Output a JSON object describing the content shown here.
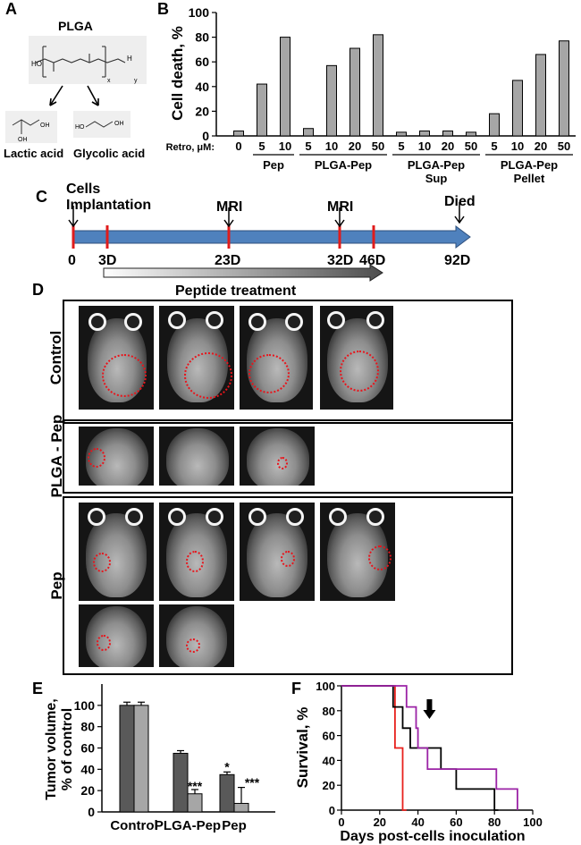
{
  "panel_labels": {
    "A": "A",
    "B": "B",
    "C": "C",
    "D": "D",
    "E": "E",
    "F": "F"
  },
  "panel_a": {
    "title": "PLGA",
    "product_1": "Lactic acid",
    "product_2": "Glycolic acid"
  },
  "panel_c": {
    "events": [
      "Cells\nImplantation",
      "MRI",
      "MRI",
      "Died"
    ],
    "days": [
      "0",
      "3D",
      "23D",
      "32D",
      "46D",
      "92D"
    ],
    "treatment_label": "Peptide treatment"
  },
  "panel_d": {
    "rows": [
      "Control",
      "PLGA - Pep",
      "Pep"
    ]
  },
  "chart_data": [
    {
      "type": "bar",
      "panel": "B",
      "ylabel": "Cell death, %",
      "ylim": [
        0,
        100
      ],
      "yticks": [
        0,
        20,
        40,
        60,
        80,
        100
      ],
      "x_prefix": "Retro, μM:",
      "categories": [
        "0",
        "5",
        "10",
        "5",
        "10",
        "20",
        "50",
        "5",
        "10",
        "20",
        "50",
        "5",
        "10",
        "20",
        "50"
      ],
      "values": [
        4,
        42,
        80,
        6,
        57,
        71,
        82,
        3,
        4,
        4,
        3,
        18,
        45,
        66,
        77
      ],
      "groups": [
        {
          "label": "Pep",
          "range": [
            1,
            2
          ]
        },
        {
          "label": "PLGA-Pep",
          "range": [
            3,
            6
          ]
        },
        {
          "label": "PLGA-Pep\nSup",
          "range": [
            7,
            10
          ]
        },
        {
          "label": "PLGA-Pep\nPellet",
          "range": [
            11,
            14
          ]
        }
      ],
      "color": "#a6a6a6"
    },
    {
      "type": "bar",
      "panel": "E",
      "ylabel": "Tumor volume,\n% of control",
      "ylim": [
        0,
        120
      ],
      "yticks": [
        0,
        20,
        40,
        60,
        80,
        100
      ],
      "categories": [
        "Control",
        "PLGA-Pep",
        "Pep"
      ],
      "series": [
        {
          "values": [
            100,
            55,
            35
          ],
          "errors": [
            3,
            2.5,
            2.5
          ],
          "color": "#595959"
        },
        {
          "values": [
            100,
            17,
            8
          ],
          "errors": [
            3,
            4,
            15
          ],
          "color": "#a6a6a6"
        }
      ],
      "annotations": [
        "*",
        "***",
        "***"
      ]
    },
    {
      "type": "line",
      "panel": "F",
      "ylabel": "Survival, %",
      "xlabel": "Days post-cells inoculation",
      "xlim": [
        0,
        100
      ],
      "ylim": [
        0,
        100
      ],
      "xticks": [
        0,
        20,
        40,
        60,
        80,
        100
      ],
      "yticks": [
        0,
        20,
        40,
        60,
        80,
        100
      ],
      "series": [
        {
          "color": "#e8211d",
          "points": [
            [
              0,
              100
            ],
            [
              28,
              100
            ],
            [
              28,
              50
            ],
            [
              32,
              50
            ],
            [
              32,
              0
            ],
            [
              34,
              0
            ]
          ]
        },
        {
          "color": "#000000",
          "points": [
            [
              0,
              100
            ],
            [
              27,
              100
            ],
            [
              27,
              83
            ],
            [
              32,
              83
            ],
            [
              32,
              66
            ],
            [
              36,
              66
            ],
            [
              36,
              50
            ],
            [
              52,
              50
            ],
            [
              52,
              33
            ],
            [
              53,
              33
            ],
            [
              53,
              33
            ],
            [
              60,
              33
            ],
            [
              60,
              17
            ],
            [
              80,
              17
            ],
            [
              80,
              0
            ],
            [
              82,
              0
            ]
          ]
        },
        {
          "color": "#9b23a6",
          "points": [
            [
              0,
              100
            ],
            [
              34,
              100
            ],
            [
              34,
              83
            ],
            [
              39,
              83
            ],
            [
              39,
              66
            ],
            [
              40,
              66
            ],
            [
              40,
              50
            ],
            [
              45,
              50
            ],
            [
              45,
              33
            ],
            [
              81,
              33
            ],
            [
              81,
              17
            ],
            [
              92,
              17
            ],
            [
              92,
              0
            ]
          ]
        }
      ],
      "arrow_at_day": 46
    }
  ]
}
